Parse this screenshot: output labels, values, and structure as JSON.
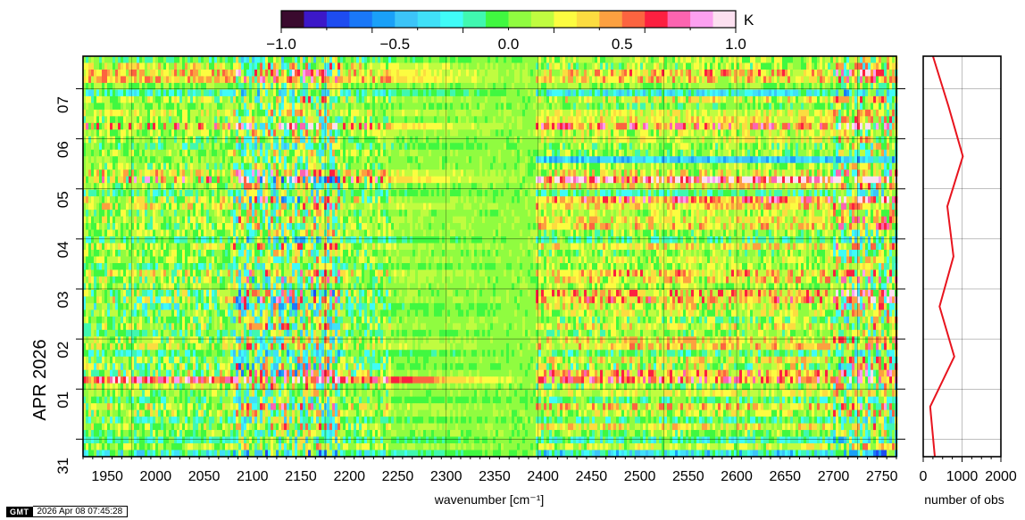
{
  "chart_data": [
    {
      "type": "heatmap",
      "title": "",
      "xlabel": "wavenumber [cm⁻¹]",
      "ylabel": "APR 2026",
      "xlim": [
        1925,
        2765
      ],
      "x_ticks": [
        1950,
        2000,
        2050,
        2100,
        2150,
        2200,
        2250,
        2300,
        2350,
        2400,
        2450,
        2500,
        2550,
        2600,
        2650,
        2700,
        2750
      ],
      "y_ticks": [
        "31",
        "01",
        "02",
        "03",
        "04",
        "05",
        "06",
        "07"
      ],
      "gap_range": [
        2392,
        2397
      ],
      "colorbar": {
        "label": "K",
        "range": [
          -1.0,
          1.0
        ],
        "ticks": [
          "−1.0",
          "−0.5",
          "0.0",
          "0.5",
          "1.0"
        ],
        "colors": [
          "#3a0a2e",
          "#3c18c8",
          "#1e4cf0",
          "#1a78f8",
          "#1aa0f8",
          "#3cc4f8",
          "#40e0f8",
          "#40fcf8",
          "#40f8b0",
          "#40f840",
          "#90fc40",
          "#c0fc40",
          "#fcfc40",
          "#fcdc40",
          "#fca040",
          "#fc6440",
          "#fc2040",
          "#fc64b0",
          "#fca0f0",
          "#fce0f0"
        ]
      },
      "rows": [
        {
          "a": -0.05,
          "b": 0.1,
          "v": 0.2
        },
        {
          "a": 0.2,
          "b": 0.1,
          "v": 0.25
        },
        {
          "a": 0.3,
          "b": 0.35,
          "v": 0.3
        },
        {
          "a": 0.35,
          "b": 0.3,
          "v": 0.25
        },
        {
          "a": 0.05,
          "b": 0.05,
          "v": 0.15
        },
        {
          "a": -0.15,
          "b": -0.25,
          "v": 0.2
        },
        {
          "a": 0.1,
          "b": 0.2,
          "v": 0.25
        },
        {
          "a": 0.05,
          "b": 0.0,
          "v": 0.15
        },
        {
          "a": 0.15,
          "b": 0.2,
          "v": 0.2
        },
        {
          "a": 0.05,
          "b": 0.25,
          "v": 0.2
        },
        {
          "a": 0.35,
          "b": 0.45,
          "v": 0.4
        },
        {
          "a": 0.1,
          "b": 0.15,
          "v": 0.2
        },
        {
          "a": 0.05,
          "b": 0.2,
          "v": 0.2
        },
        {
          "a": -0.05,
          "b": 0.05,
          "v": 0.2
        },
        {
          "a": 0.1,
          "b": 0.05,
          "v": 0.2
        },
        {
          "a": 0.05,
          "b": -0.4,
          "v": 0.15
        },
        {
          "a": 0.05,
          "b": 0.1,
          "v": 0.2
        },
        {
          "a": 0.25,
          "b": 0.2,
          "v": 0.3
        },
        {
          "a": 0.35,
          "b": 0.8,
          "v": 0.5
        },
        {
          "a": 0.05,
          "b": 0.25,
          "v": 0.25
        },
        {
          "a": -0.05,
          "b": -0.1,
          "v": 0.2
        },
        {
          "a": 0.1,
          "b": 0.55,
          "v": 0.35
        },
        {
          "a": 0.2,
          "b": 0.3,
          "v": 0.25
        },
        {
          "a": 0.05,
          "b": 0.15,
          "v": 0.2
        },
        {
          "a": 0.1,
          "b": 0.25,
          "v": 0.25
        },
        {
          "a": 0.05,
          "b": 0.3,
          "v": 0.25
        },
        {
          "a": 0.1,
          "b": 0.05,
          "v": 0.2
        },
        {
          "a": -0.1,
          "b": -0.05,
          "v": 0.2
        },
        {
          "a": 0.15,
          "b": 0.25,
          "v": 0.25
        },
        {
          "a": 0.05,
          "b": 0.05,
          "v": 0.2
        },
        {
          "a": 0.1,
          "b": 0.15,
          "v": 0.2
        },
        {
          "a": -0.05,
          "b": 0.1,
          "v": 0.2
        },
        {
          "a": 0.15,
          "b": 0.35,
          "v": 0.3
        },
        {
          "a": 0.1,
          "b": 0.25,
          "v": 0.3
        },
        {
          "a": 0.05,
          "b": 0.1,
          "v": 0.2
        },
        {
          "a": 0.05,
          "b": 0.35,
          "v": 0.35
        },
        {
          "a": 0.1,
          "b": 0.4,
          "v": 0.35
        },
        {
          "a": -0.05,
          "b": 0.2,
          "v": 0.3
        },
        {
          "a": 0.0,
          "b": 0.15,
          "v": 0.25
        },
        {
          "a": 0.05,
          "b": 0.05,
          "v": 0.25
        },
        {
          "a": 0.1,
          "b": 0.2,
          "v": 0.25
        },
        {
          "a": -0.05,
          "b": 0.05,
          "v": 0.2
        },
        {
          "a": 0.1,
          "b": 0.25,
          "v": 0.25
        },
        {
          "a": 0.15,
          "b": 0.3,
          "v": 0.25
        },
        {
          "a": -0.1,
          "b": -0.05,
          "v": 0.2
        },
        {
          "a": 0.05,
          "b": 0.2,
          "v": 0.25
        },
        {
          "a": 0.0,
          "b": 0.1,
          "v": 0.35
        },
        {
          "a": 0.1,
          "b": 0.4,
          "v": 0.35
        },
        {
          "a": 0.65,
          "b": 0.5,
          "v": 0.35
        },
        {
          "a": 0.1,
          "b": 0.1,
          "v": 0.25
        },
        {
          "a": 0.05,
          "b": 0.2,
          "v": 0.2
        },
        {
          "a": -0.05,
          "b": -0.05,
          "v": 0.2
        },
        {
          "a": 0.15,
          "b": 0.3,
          "v": 0.3
        },
        {
          "a": 0.1,
          "b": 0.15,
          "v": 0.25
        },
        {
          "a": -0.05,
          "b": -0.1,
          "v": 0.2
        },
        {
          "a": 0.1,
          "b": 0.25,
          "v": 0.25
        },
        {
          "a": 0.05,
          "b": 0.05,
          "v": 0.2
        },
        {
          "a": -0.1,
          "b": -0.15,
          "v": 0.2
        },
        {
          "a": 0.1,
          "b": 0.15,
          "v": 0.2
        },
        {
          "a": -0.2,
          "b": -0.3,
          "v": 0.25
        }
      ]
    },
    {
      "type": "line",
      "xlabel": "number of obs",
      "ylabel": "",
      "xlim": [
        0,
        2000
      ],
      "x_ticks": [
        0,
        1000,
        2000
      ],
      "x_tick_labels": [
        "0",
        "1000",
        "2000"
      ],
      "series": [
        {
          "values": [
            300,
            180,
            800,
            420,
            780,
            620,
            1020,
            650,
            250
          ]
        }
      ]
    }
  ],
  "footer": {
    "logo": "GMT",
    "timestamp": "2026 Apr 08 07:45:28"
  }
}
